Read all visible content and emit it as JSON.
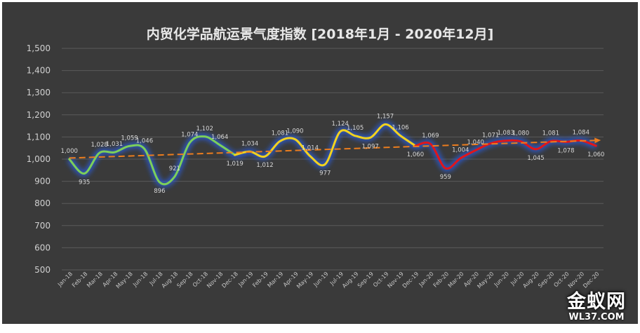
{
  "chart_data": {
    "type": "line",
    "title": "内贸化学品航运景气度指数 [2018年1月 - 2020年12月]",
    "xlabel": "",
    "ylabel": "",
    "ylim": [
      500,
      1500
    ],
    "yticks": [
      "500",
      "600",
      "700",
      "800",
      "900",
      "1,000",
      "1,100",
      "1,200",
      "1,300",
      "1,400",
      "1,500"
    ],
    "grid": true,
    "categories": [
      "Jan-18",
      "Feb-18",
      "Mar-18",
      "Apr-18",
      "May-18",
      "Jun-18",
      "Jul-18",
      "Aug-18",
      "Sep-18",
      "Oct-18",
      "Nov-18",
      "Dec-18",
      "Jan-19",
      "Feb-19",
      "Mar-19",
      "Apr-19",
      "May-19",
      "Jun-19",
      "Jul-19",
      "Aug-19",
      "Sep-19",
      "Oct-19",
      "Nov-19",
      "Dec-19",
      "Jan-20",
      "Feb-20",
      "Mar-20",
      "Apr-20",
      "May-20",
      "Jun-20",
      "Jul-20",
      "Aug-20",
      "Sep-20",
      "Oct-20",
      "Nov-20",
      "Dec-20"
    ],
    "values": [
      1000,
      935,
      1028,
      1031,
      1059,
      1046,
      896,
      921,
      1074,
      1102,
      1064,
      1019,
      1034,
      1012,
      1081,
      1090,
      1014,
      977,
      1124,
      1105,
      1097,
      1157,
      1106,
      1060,
      1069,
      959,
      1004,
      1040,
      1071,
      1083,
      1080,
      1045,
      1081,
      1078,
      1084,
      1060
    ],
    "data_labels": [
      "1,000",
      "935",
      "1,028",
      "1,031",
      "1,059",
      "1,046",
      "896",
      "921",
      "1,074",
      "1,102",
      "1,064",
      "1,019",
      "1,034",
      "1,012",
      "1,081",
      "1,090",
      "1,014",
      "977",
      "1,124",
      "1,105",
      "1,097",
      "1,157",
      "1,106",
      "1,060",
      "1,069",
      "959",
      "1,004",
      "1,040",
      "1,071",
      "1,083",
      "1,080",
      "1,045",
      "1,081",
      "1,078",
      "1,084",
      "1,060"
    ],
    "segments": [
      {
        "from": 0,
        "to": 11,
        "color": "#7ccf5a"
      },
      {
        "from": 11,
        "to": 23,
        "color": "#f2d21e"
      },
      {
        "from": 23,
        "to": 35,
        "color": "#e0161b"
      }
    ],
    "trendline": {
      "start": 1005,
      "end": 1085,
      "color": "#ec7d1e",
      "style": "dashed-arrow"
    }
  },
  "watermark": {
    "main": "金蚁网",
    "sub": "WL37.COM"
  }
}
